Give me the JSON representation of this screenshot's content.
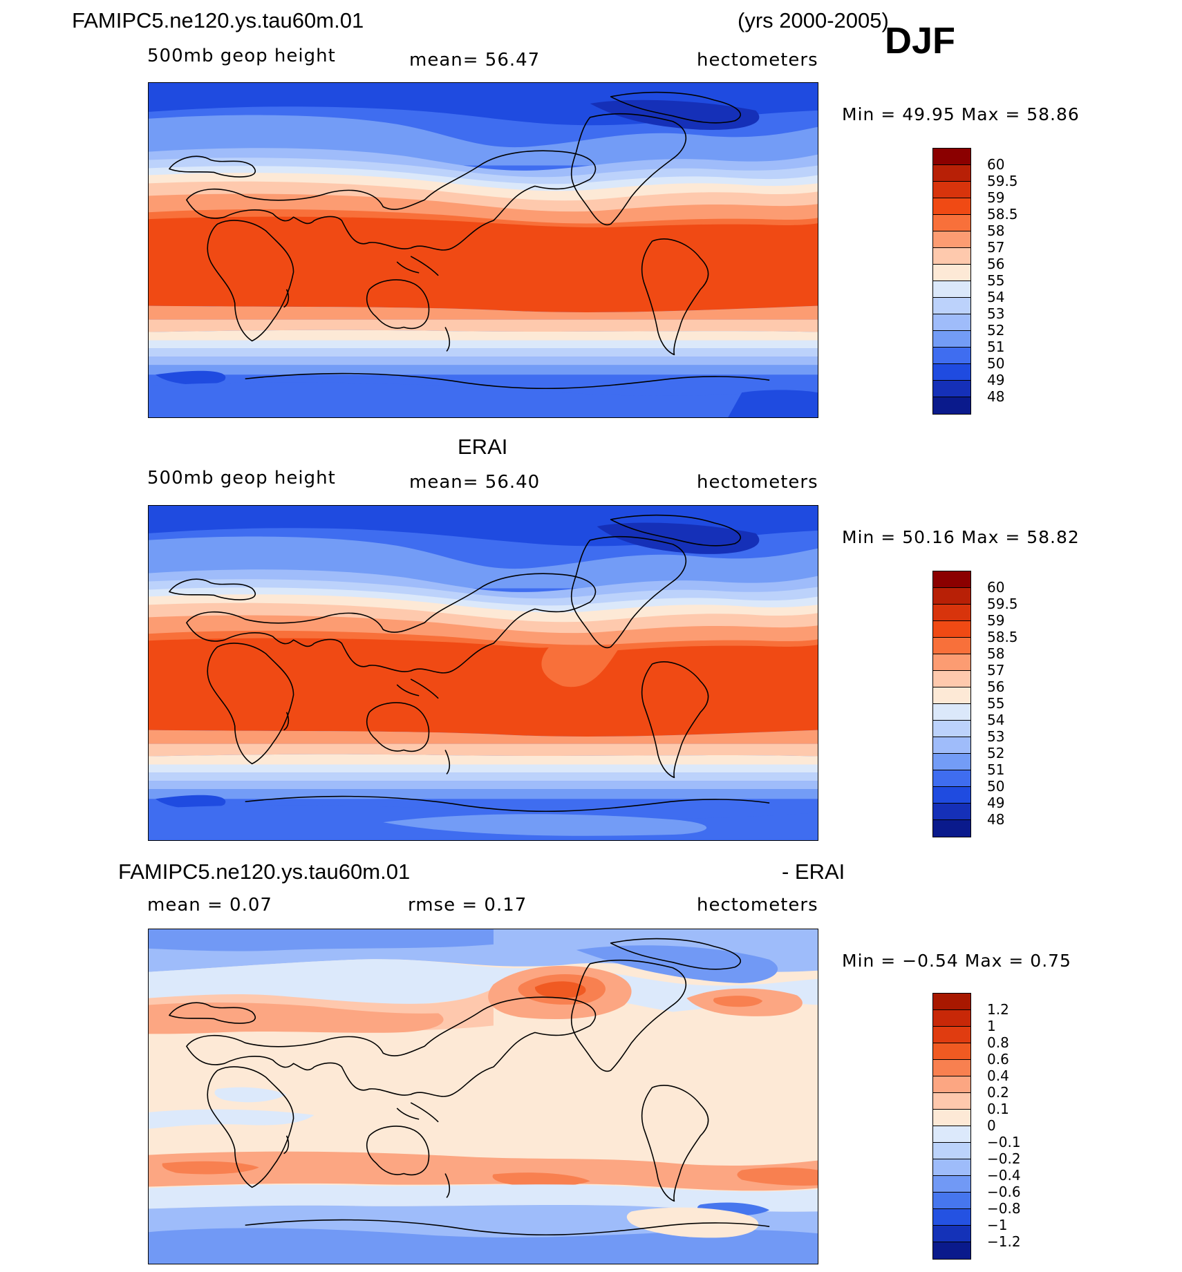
{
  "header": {
    "case_title": "FAMIPC5.ne120.ys.tau60m.01",
    "years": "(yrs 2000-2005)",
    "season": "DJF"
  },
  "panels": [
    {
      "id": "model",
      "variable": "500mb geop height",
      "stat": "mean=   56.47",
      "units": "hectometers",
      "minmax": "Min =   49.95  Max =   58.86",
      "legend": {
        "labels": [
          "60",
          "59.5",
          "59",
          "58.5",
          "58",
          "57",
          "56",
          "55",
          "54",
          "53",
          "52",
          "51",
          "50",
          "49",
          "48"
        ],
        "colors": [
          "#8b0000",
          "#b82006",
          "#d8340c",
          "#f04a14",
          "#f8703a",
          "#fc9c72",
          "#fec9ad",
          "#fde9d6",
          "#dbe8fa",
          "#bcd2fb",
          "#9fbcfa",
          "#739cf6",
          "#3f6df0",
          "#1f4be0",
          "#1530b8",
          "#0a1a8c"
        ]
      }
    },
    {
      "id": "obs",
      "title": "ERAI",
      "variable": "500mb geop height",
      "stat": "mean=   56.40",
      "units": "hectometers",
      "minmax": "Min =   50.16  Max =   58.82",
      "legend": {
        "labels": [
          "60",
          "59.5",
          "59",
          "58.5",
          "58",
          "57",
          "56",
          "55",
          "54",
          "53",
          "52",
          "51",
          "50",
          "49",
          "48"
        ],
        "colors": [
          "#8b0000",
          "#b82006",
          "#d8340c",
          "#f04a14",
          "#f8703a",
          "#fc9c72",
          "#fec9ad",
          "#fde9d6",
          "#dbe8fa",
          "#bcd2fb",
          "#9fbcfa",
          "#739cf6",
          "#3f6df0",
          "#1f4be0",
          "#1530b8",
          "#0a1a8c"
        ]
      }
    },
    {
      "id": "diff",
      "title_left": "FAMIPC5.ne120.ys.tau60m.01",
      "title_right": "- ERAI",
      "stat_mean": "mean =    0.07",
      "stat_rmse": "rmse =    0.17",
      "units": "hectometers",
      "minmax": "Min =   −0.54  Max =    0.75",
      "legend": {
        "labels": [
          "1.2",
          "1",
          "0.8",
          "0.6",
          "0.4",
          "0.2",
          "0.1",
          "0",
          "−0.1",
          "−0.2",
          "−0.4",
          "−0.6",
          "−0.8",
          "−1",
          "−1.2"
        ],
        "colors": [
          "#a81800",
          "#c82808",
          "#e03c10",
          "#f05a22",
          "#f88050",
          "#fca682",
          "#fec8ad",
          "#fde9d6",
          "#dce9fb",
          "#bcd3fb",
          "#9ebcfa",
          "#7199f5",
          "#4676ee",
          "#2452e2",
          "#1432b8",
          "#0a1a8c"
        ]
      }
    }
  ],
  "colors": {
    "deep_blue": "#1a40e0",
    "blue": "#4572f0",
    "light_blue": "#a9c3fa",
    "pale": "#fde9d6",
    "peach": "#fcb894",
    "orange": "#f88050",
    "red_orange": "#f15a24"
  }
}
